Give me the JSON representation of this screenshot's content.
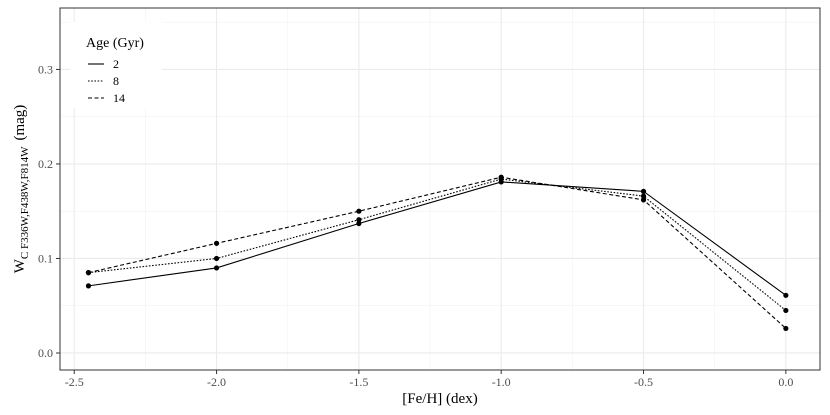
{
  "chart_data": {
    "type": "line",
    "xlabel": "[Fe/H] (dex)",
    "ylabel": {
      "main": "W",
      "subscript": "C F336W,F438W,F814W",
      "unit": "(mag)"
    },
    "xlim": [
      -2.55,
      0.12
    ],
    "ylim": [
      -0.018,
      0.365
    ],
    "xticks": [
      -2.5,
      -2.0,
      -1.5,
      -1.0,
      -0.5,
      0.0
    ],
    "xtick_labels": [
      "-2.5",
      "-2.0",
      "-1.5",
      "-1.0",
      "-0.5",
      "0.0"
    ],
    "yticks": [
      0.0,
      0.1,
      0.2,
      0.3
    ],
    "ytick_labels": [
      "0.0",
      "0.1",
      "0.2",
      "0.3"
    ],
    "grid": true,
    "legend": {
      "title": "Age (Gyr)",
      "position": "top-left"
    },
    "x": [
      -2.45,
      -2.0,
      -1.5,
      -1.0,
      -0.5,
      0.0
    ],
    "series": [
      {
        "name": "2",
        "dash": "solid",
        "values": [
          0.071,
          0.09,
          0.137,
          0.181,
          0.171,
          0.061
        ]
      },
      {
        "name": "8",
        "dash": "dotted",
        "values": [
          0.085,
          0.1,
          0.141,
          0.184,
          0.166,
          0.045
        ]
      },
      {
        "name": "14",
        "dash": "dashed",
        "values": [
          0.085,
          0.116,
          0.15,
          0.186,
          0.162,
          0.026
        ]
      }
    ]
  }
}
